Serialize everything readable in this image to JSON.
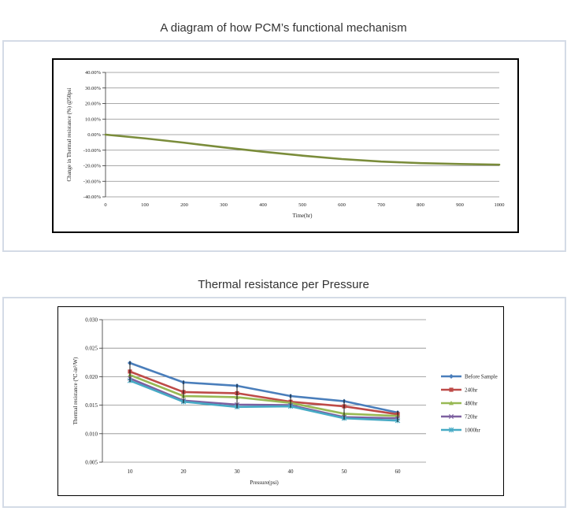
{
  "page": {
    "title1": "A diagram of how PCM’s functional mechanism",
    "title2": "Thermal resistance  per Pressure"
  },
  "chart_data": [
    {
      "type": "line",
      "title": "",
      "xlabel": "Time(hr)",
      "ylabel": "Change in Thermal resistance (%) @50psi",
      "xlim": [
        0,
        1000
      ],
      "ylim": [
        -0.4,
        0.4
      ],
      "x_ticks": [
        "0",
        "100",
        "200",
        "300",
        "400",
        "500",
        "600",
        "700",
        "800",
        "900",
        "1000"
      ],
      "y_ticks": [
        "40.00%",
        "30.00%",
        "20.00%",
        "10.00%",
        "0.00%",
        "-10.00%",
        "-20.00%",
        "-30.00%",
        "-40.00%"
      ],
      "grid": "horizontal",
      "color": "#7a8c3a",
      "series": [
        {
          "x": [
            0,
            100,
            200,
            300,
            400,
            500,
            600,
            700,
            800,
            900,
            1000
          ],
          "values": [
            0.0,
            -0.024,
            -0.052,
            -0.082,
            -0.11,
            -0.135,
            -0.157,
            -0.173,
            -0.183,
            -0.189,
            -0.193
          ]
        }
      ]
    },
    {
      "type": "line",
      "title": "",
      "xlabel": "Pressure(psi)",
      "ylabel": "Thermal resistance (℃-in²/W)",
      "ylim": [
        0.005,
        0.03
      ],
      "categories": [
        "10",
        "20",
        "30",
        "40",
        "50",
        "60"
      ],
      "y_ticks": [
        "0.030",
        "0.025",
        "0.020",
        "0.015",
        "0.010",
        "0.005"
      ],
      "grid": "horizontal",
      "legend": "right",
      "series": [
        {
          "name": "Before Sample",
          "color": "#4a7ebb",
          "marker": "diamond",
          "values": [
            0.0224,
            0.019,
            0.0184,
            0.0166,
            0.0157,
            0.0137
          ]
        },
        {
          "name": "240hr",
          "color": "#be4b48",
          "marker": "square",
          "values": [
            0.0209,
            0.0173,
            0.0171,
            0.0156,
            0.0148,
            0.0134
          ]
        },
        {
          "name": "480hr",
          "color": "#98b954",
          "marker": "triangle",
          "values": [
            0.0203,
            0.0166,
            0.0164,
            0.0154,
            0.0135,
            0.0131
          ]
        },
        {
          "name": "720hr",
          "color": "#7d60a0",
          "marker": "x",
          "values": [
            0.0197,
            0.0158,
            0.0151,
            0.015,
            0.0129,
            0.0127
          ]
        },
        {
          "name": "1000hr",
          "color": "#46aac5",
          "marker": "star",
          "values": [
            0.0193,
            0.0156,
            0.0147,
            0.0148,
            0.0127,
            0.0123
          ]
        }
      ]
    }
  ]
}
